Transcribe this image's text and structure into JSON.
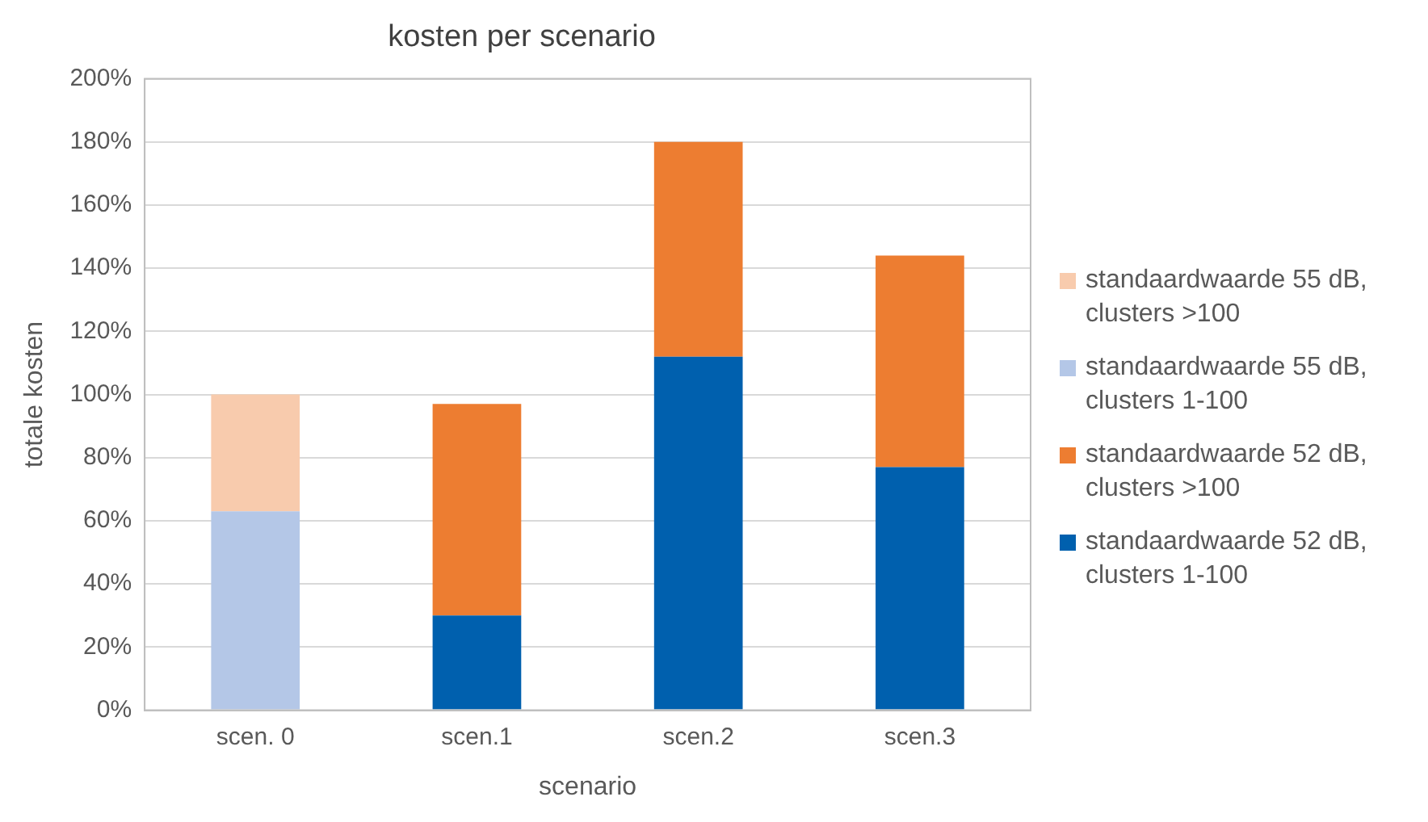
{
  "chart_data": {
    "type": "bar",
    "title": "kosten per scenario",
    "xlabel": "scenario",
    "ylabel": "totale kosten",
    "categories": [
      "scen. 0",
      "scen.1",
      "scen.2",
      "scen.3"
    ],
    "stacked": true,
    "ylim": [
      0,
      200
    ],
    "yticks": [
      {
        "value": 0,
        "label": "0%"
      },
      {
        "value": 20,
        "label": "20%"
      },
      {
        "value": 40,
        "label": "40%"
      },
      {
        "value": 60,
        "label": "60%"
      },
      {
        "value": 80,
        "label": "80%"
      },
      {
        "value": 100,
        "label": "100%"
      },
      {
        "value": 120,
        "label": "120%"
      },
      {
        "value": 140,
        "label": "140%"
      },
      {
        "value": 160,
        "label": "160%"
      },
      {
        "value": 180,
        "label": "180%"
      },
      {
        "value": 200,
        "label": "200%"
      }
    ],
    "grid": "y",
    "legend": "right",
    "series": [
      {
        "name": "standaardwaarde 52 dB, clusters 1-100",
        "color": "#0060ae",
        "values": [
          null,
          30,
          112,
          77
        ]
      },
      {
        "name": "standaardwaarde 52 dB, clusters >100",
        "color": "#ed7d31",
        "values": [
          null,
          67,
          68,
          67
        ]
      },
      {
        "name": "standaardwaarde 55 dB, clusters 1-100",
        "color": "#b4c7e7",
        "values": [
          63,
          null,
          null,
          null
        ]
      },
      {
        "name": "standaardwaarde 55 dB, clusters >100",
        "color": "#f8cbad",
        "values": [
          37,
          null,
          null,
          null
        ]
      }
    ]
  }
}
